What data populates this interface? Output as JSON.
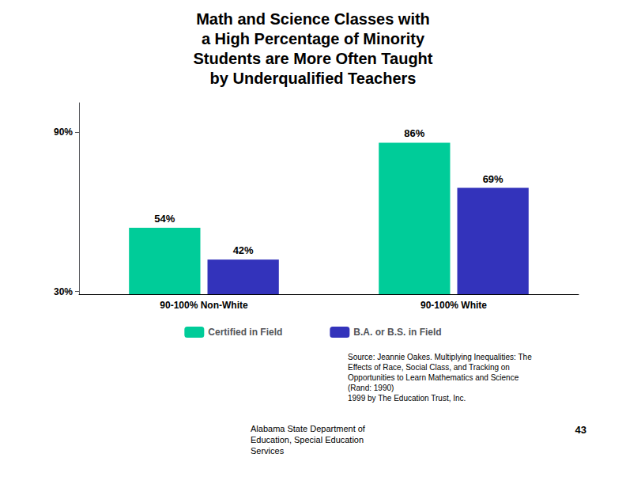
{
  "chart_data": {
    "type": "bar",
    "title": "Math and Science Classes with\na High Percentage of Minority\nStudents are More Often Taught\nby Underqualified Teachers",
    "categories": [
      "90-100% Non-White",
      "90-100% White"
    ],
    "series": [
      {
        "name": "Certified in Field",
        "color": "#00cc99",
        "values": [
          54,
          86
        ],
        "value_labels": [
          "54%",
          "86%"
        ]
      },
      {
        "name": "B.A. or B.S. in Field",
        "color": "#3333bb",
        "values": [
          42,
          69
        ],
        "value_labels": [
          "42%",
          "69%"
        ]
      }
    ],
    "ylim": [
      29,
      101
    ],
    "yticks": [
      {
        "value": 30,
        "label": "30%"
      },
      {
        "value": 90,
        "label": "90%"
      }
    ],
    "grid": false,
    "data_labels": true,
    "legend": "bottom",
    "annotations": [
      "Source: Jeannie Oakes. Multiplying Inequalities: The\nEffects of Race, Social Class, and Tracking on\nOpportunities to Learn Mathematics and Science\n(Rand: 1990)\n1999 by The Education Trust, Inc.",
      "Alabama State Department of\nEducation, Special Education\nServices",
      "43"
    ]
  }
}
